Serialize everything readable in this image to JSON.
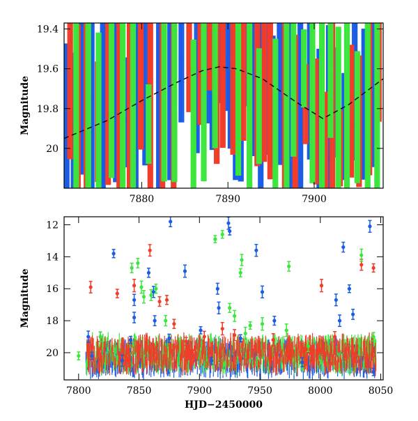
{
  "chart_data": [
    {
      "type": "scatter",
      "title": "",
      "xlabel": "",
      "ylabel": "Magnitude",
      "xlim": [
        7871,
        7908
      ],
      "ylim": [
        20.2,
        19.37
      ],
      "y_inverted": true,
      "x_ticks": [
        7880,
        7890,
        7900
      ],
      "y_ticks": [
        19.4,
        19.6,
        19.8,
        20
      ],
      "x_tick_labels": [
        "7880",
        "7890",
        "7900"
      ],
      "y_tick_labels": [
        "19.4",
        "19.6",
        "19.8",
        "20"
      ],
      "model_curve": {
        "style": "dashed",
        "color": "#000000",
        "points": [
          [
            7871,
            19.95
          ],
          [
            7876,
            19.86
          ],
          [
            7880,
            19.76
          ],
          [
            7884,
            19.67
          ],
          [
            7887,
            19.61
          ],
          [
            7889,
            19.59
          ],
          [
            7891,
            19.6
          ],
          [
            7894,
            19.65
          ],
          [
            7898,
            19.77
          ],
          [
            7901,
            19.85
          ],
          [
            7904,
            19.78
          ],
          [
            7908,
            19.65
          ]
        ]
      },
      "series": [
        {
          "color": "#1a5ce6",
          "points": [
            [
              7871.3,
              20.05
            ],
            [
              7872.1,
              19.9
            ],
            [
              7873.0,
              19.68
            ],
            [
              7874.2,
              19.75
            ],
            [
              7875.5,
              19.8
            ],
            [
              7877.0,
              19.7
            ],
            [
              7878.1,
              19.85
            ],
            [
              7879.3,
              19.78
            ],
            [
              7880.4,
              19.6
            ],
            [
              7882.0,
              19.72
            ],
            [
              7883.3,
              19.66
            ],
            [
              7884.6,
              19.55
            ],
            [
              7886.4,
              19.5
            ],
            [
              7887.6,
              19.62
            ],
            [
              7888.2,
              19.58
            ],
            [
              7889.0,
              19.5
            ],
            [
              7889.7,
              19.55
            ],
            [
              7890.3,
              19.48
            ],
            [
              7890.9,
              19.6
            ],
            [
              7891.5,
              19.62
            ],
            [
              7892.2,
              19.57
            ],
            [
              7893.0,
              19.66
            ],
            [
              7893.8,
              19.72
            ],
            [
              7894.5,
              19.7
            ],
            [
              7895.2,
              19.8
            ],
            [
              7896.0,
              19.75
            ],
            [
              7897.2,
              19.9
            ],
            [
              7898.4,
              19.85
            ],
            [
              7899.5,
              19.7
            ],
            [
              7900.6,
              19.95
            ],
            [
              7901.7,
              20.05
            ],
            [
              7902.5,
              19.8
            ],
            [
              7903.5,
              19.92
            ],
            [
              7904.7,
              19.75
            ],
            [
              7905.8,
              19.82
            ],
            [
              7907.0,
              19.7
            ]
          ]
        },
        {
          "color": "#f03c28",
          "points": [
            [
              7871.7,
              19.45
            ],
            [
              7872.6,
              19.85
            ],
            [
              7873.6,
              19.95
            ],
            [
              7874.9,
              19.9
            ],
            [
              7876.1,
              19.82
            ],
            [
              7877.4,
              19.88
            ],
            [
              7878.6,
              19.75
            ],
            [
              7879.9,
              19.7
            ],
            [
              7881.0,
              19.82
            ],
            [
              7882.4,
              19.68
            ],
            [
              7883.7,
              19.72
            ],
            [
              7885.5,
              19.6
            ],
            [
              7886.8,
              19.45
            ],
            [
              7887.9,
              19.5
            ],
            [
              7888.7,
              19.6
            ],
            [
              7889.4,
              19.65
            ],
            [
              7890.6,
              19.55
            ],
            [
              7891.8,
              19.68
            ],
            [
              7893.4,
              19.75
            ],
            [
              7894.2,
              19.72
            ],
            [
              7894.9,
              19.8
            ],
            [
              7896.6,
              19.78
            ],
            [
              7897.8,
              19.88
            ],
            [
              7899.0,
              19.8
            ],
            [
              7900.2,
              19.9
            ],
            [
              7901.3,
              20.0
            ],
            [
              7902.1,
              19.92
            ],
            [
              7903.0,
              20.02
            ],
            [
              7904.3,
              19.85
            ],
            [
              7905.2,
              19.9
            ],
            [
              7906.4,
              19.78
            ],
            [
              7907.5,
              19.6
            ]
          ]
        },
        {
          "color": "#3ce63c",
          "points": [
            [
              7872.4,
              19.9
            ],
            [
              7873.8,
              19.85
            ],
            [
              7875.0,
              19.93
            ],
            [
              7876.5,
              19.6
            ],
            [
              7877.8,
              19.8
            ],
            [
              7879.0,
              19.72
            ],
            [
              7880.8,
              19.9
            ],
            [
              7882.6,
              19.75
            ],
            [
              7883.8,
              19.8
            ],
            [
              7886.0,
              19.95
            ],
            [
              7887.2,
              19.7
            ],
            [
              7888.5,
              19.7
            ],
            [
              7891.2,
              19.75
            ],
            [
              7892.5,
              19.68
            ],
            [
              7893.6,
              19.82
            ],
            [
              7895.5,
              19.95
            ],
            [
              7896.8,
              19.85
            ],
            [
              7897.6,
              19.6
            ],
            [
              7898.8,
              19.62
            ],
            [
              7899.8,
              19.72
            ],
            [
              7900.9,
              19.75
            ],
            [
              7901.9,
              19.6
            ],
            [
              7902.8,
              20.05
            ],
            [
              7903.8,
              19.85
            ],
            [
              7905.0,
              19.88
            ],
            [
              7906.2,
              19.95
            ],
            [
              7907.3,
              19.9
            ]
          ]
        }
      ]
    },
    {
      "type": "scatter",
      "title": "",
      "xlabel": "HJD−2450000",
      "ylabel": "Magnitude",
      "xlim": [
        7788,
        8052
      ],
      "ylim": [
        21.7,
        11.5
      ],
      "y_inverted": true,
      "x_ticks": [
        7800,
        7850,
        7900,
        7950,
        8000,
        8050
      ],
      "y_ticks": [
        12,
        14,
        16,
        18,
        20
      ],
      "x_tick_labels": [
        "7800",
        "7850",
        "7900",
        "7950",
        "8000",
        "8050"
      ],
      "y_tick_labels": [
        "12",
        "14",
        "16",
        "18",
        "20"
      ],
      "baseline": {
        "x_start": 7806,
        "x_end": 8046,
        "mag_min": 19.3,
        "mag_max": 20.9
      },
      "series": [
        {
          "color": "#1a5ce6",
          "points": [
            [
              7808,
              19.0
            ],
            [
              7811,
              20.2
            ],
            [
              7818,
              19.0
            ],
            [
              7829,
              13.8
            ],
            [
              7836,
              20.5
            ],
            [
              7843,
              19.2
            ],
            [
              7846,
              16.7
            ],
            [
              7846,
              17.8
            ],
            [
              7858,
              15.0
            ],
            [
              7862,
              16.2
            ],
            [
              7863,
              18.0
            ],
            [
              7876,
              11.8
            ],
            [
              7875,
              19.1
            ],
            [
              7888,
              14.9
            ],
            [
              7901,
              18.6
            ],
            [
              7910,
              20.5
            ],
            [
              7915,
              16.0
            ],
            [
              7916,
              17.2
            ],
            [
              7924,
              11.9
            ],
            [
              7925,
              12.4
            ],
            [
              7934,
              19.1
            ],
            [
              7947,
              13.6
            ],
            [
              7952,
              16.2
            ],
            [
              7962,
              18.0
            ],
            [
              7985,
              20.6
            ],
            [
              8013,
              16.7
            ],
            [
              8016,
              18.0
            ],
            [
              8019,
              13.4
            ],
            [
              8024,
              16.0
            ],
            [
              8027,
              17.6
            ],
            [
              8041,
              12.1
            ],
            [
              8044,
              21.2
            ]
          ]
        },
        {
          "color": "#f03c28",
          "points": [
            [
              7810,
              15.9
            ],
            [
              7832,
              16.3
            ],
            [
              7846,
              15.8
            ],
            [
              7859,
              13.6
            ],
            [
              7867,
              16.8
            ],
            [
              7873,
              16.7
            ],
            [
              7879,
              18.2
            ],
            [
              7889,
              19.3
            ],
            [
              7904,
              19.0
            ],
            [
              7919,
              18.5
            ],
            [
              7929,
              18.9
            ],
            [
              7961,
              19.2
            ],
            [
              8001,
              15.8
            ],
            [
              8012,
              19.0
            ],
            [
              8034,
              14.5
            ],
            [
              8044,
              14.7
            ]
          ]
        },
        {
          "color": "#3ce63c",
          "points": [
            [
              7800,
              20.2
            ],
            [
              7818,
              19.0
            ],
            [
              7844,
              14.7
            ],
            [
              7849,
              14.4
            ],
            [
              7852,
              15.9
            ],
            [
              7854,
              16.5
            ],
            [
              7860,
              16.4
            ],
            [
              7864,
              16.0
            ],
            [
              7872,
              18.0
            ],
            [
              7913,
              12.9
            ],
            [
              7919,
              12.6
            ],
            [
              7925,
              17.2
            ],
            [
              7929,
              17.7
            ],
            [
              7934,
              15.0
            ],
            [
              7935,
              14.2
            ],
            [
              7938,
              18.8
            ],
            [
              7942,
              18.3
            ],
            [
              7952,
              18.2
            ],
            [
              7972,
              18.6
            ],
            [
              7974,
              14.6
            ],
            [
              7990,
              19.6
            ],
            [
              8034,
              13.9
            ],
            [
              8044,
              19.0
            ]
          ]
        }
      ]
    }
  ]
}
